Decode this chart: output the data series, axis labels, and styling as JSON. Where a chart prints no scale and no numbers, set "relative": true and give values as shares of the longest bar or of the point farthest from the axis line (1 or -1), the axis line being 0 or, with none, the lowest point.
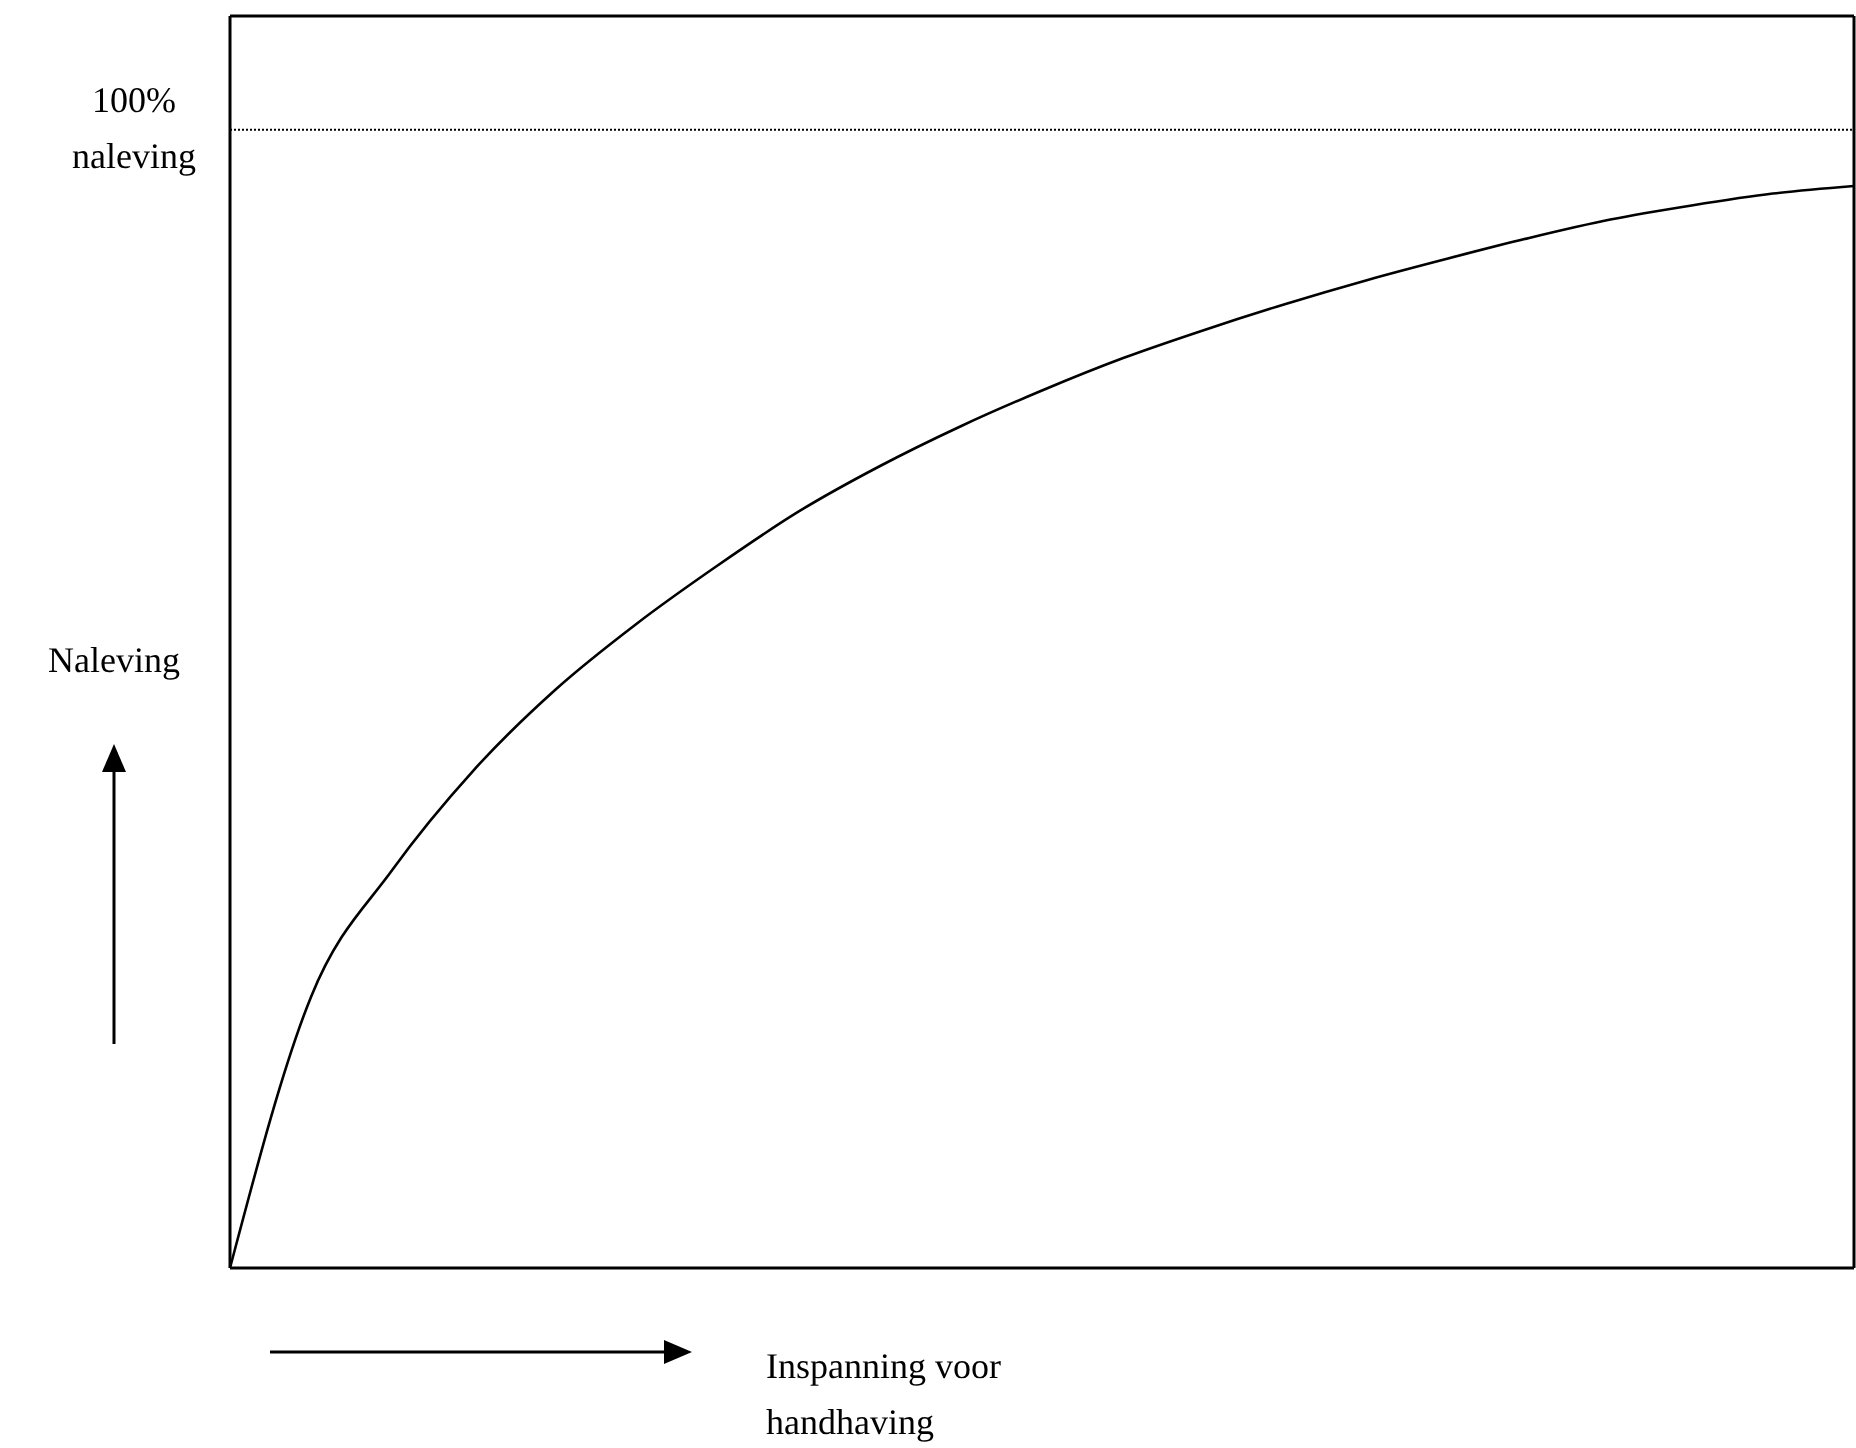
{
  "chart_data": {
    "type": "line",
    "relative": true,
    "xlabel": "Inspanning voor handhaving",
    "ylabel": "Naleving",
    "categories": [
      null,
      null,
      null,
      null,
      null,
      null,
      null,
      null,
      null,
      null,
      null,
      null,
      null,
      null,
      null,
      null,
      null,
      null,
      null,
      null,
      null
    ],
    "series": [
      {
        "color": "#000000",
        "values": [
          0,
          0.251,
          0.368,
          0.46,
          0.534,
          0.595,
          0.649,
          0.699,
          0.741,
          0.778,
          0.811,
          0.841,
          0.867,
          0.891,
          0.913,
          0.933,
          0.952,
          0.969,
          0.982,
          0.993,
          1
        ]
      }
    ],
    "ref_lines": [
      {
        "axis": "y",
        "value": 1.052,
        "label": "100% naleving",
        "line_style": "dotted",
        "color": "#000000"
      }
    ]
  }
}
